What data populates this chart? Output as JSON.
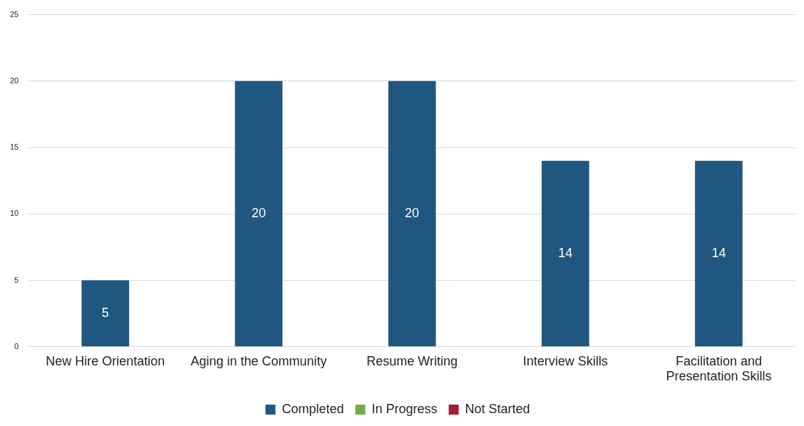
{
  "chart_data": {
    "type": "bar",
    "categories": [
      "New Hire Orientation",
      "Aging in the Community",
      "Resume Writing",
      "Interview Skills",
      "Facilitation and Presentation Skills"
    ],
    "series": [
      {
        "name": "Completed",
        "color": "#1f5780",
        "values": [
          5,
          20,
          20,
          14,
          14
        ]
      },
      {
        "name": "In Progress",
        "color": "#70ad47",
        "values": [
          null,
          null,
          null,
          null,
          null
        ]
      },
      {
        "name": "Not Started",
        "color": "#a51c36",
        "values": [
          null,
          null,
          null,
          null,
          null
        ]
      }
    ],
    "stacked": true,
    "ylim": [
      0,
      25
    ],
    "yticks": [
      0,
      5,
      10,
      15,
      20,
      25
    ],
    "grid": "y",
    "legend": "bottom",
    "data_labels": true
  }
}
